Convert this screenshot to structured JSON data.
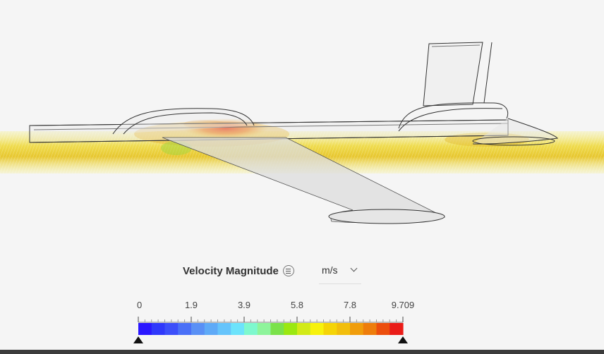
{
  "legend": {
    "title": "Velocity Magnitude",
    "menu_icon": "menu-circle-icon",
    "unit": "m/s",
    "unit_dropdown_icon": "chevron-down-icon",
    "min": 0,
    "max": 9.709,
    "ticks": [
      "0",
      "1.9",
      "3.9",
      "5.8",
      "7.8",
      "9.709"
    ],
    "colors": [
      "#2a17ff",
      "#2f38fb",
      "#3c4ffa",
      "#4a70f7",
      "#5a90f5",
      "#5faaf7",
      "#66c4fb",
      "#6ce3fb",
      "#7ef8ce",
      "#8ef49b",
      "#7be24a",
      "#9be810",
      "#d2ea17",
      "#f7f20c",
      "#f5d406",
      "#f2be0c",
      "#f09d0b",
      "#ee7d0b",
      "#ec4e0d",
      "#ea1c18"
    ]
  }
}
